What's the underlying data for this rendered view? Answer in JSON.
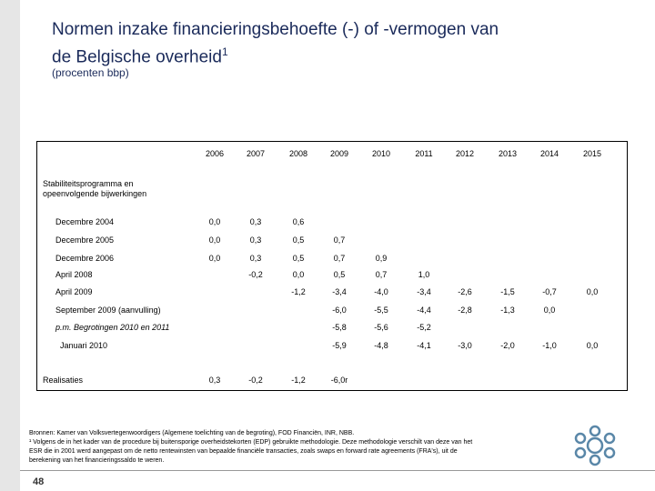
{
  "header": {
    "title_lines": [
      "Normen inzake financieringsbehoefte (-) of -vermogen van",
      "de Belgische overheid"
    ],
    "title_mark": "1",
    "subtitle": "(procenten bbp)"
  },
  "table": {
    "columns": [
      "2006",
      "2007",
      "2008",
      "2009",
      "2010",
      "2011",
      "2012",
      "2013",
      "2014",
      "2015"
    ],
    "section": "Stabiliteitsprogramma en opeenvolgende bijwerkingen",
    "rows": [
      {
        "label": "Decembre 2004",
        "cells": [
          "0,0",
          "0,3",
          "0,6",
          null,
          null,
          null,
          null,
          null,
          null,
          null
        ]
      },
      {
        "label": "Decembre 2005",
        "cells": [
          "0,0",
          "0,3",
          "0,5",
          "0,7",
          null,
          null,
          null,
          null,
          null,
          null
        ]
      },
      {
        "label": "Decembre 2006",
        "cells": [
          "0,0",
          "0,3",
          "0,5",
          "0,7",
          "0,9",
          null,
          null,
          null,
          null,
          null
        ]
      },
      {
        "label": "April 2008",
        "cells": [
          null,
          "-0,2",
          "0,0",
          "0,5",
          "0,7",
          "1,0",
          null,
          null,
          null,
          null
        ]
      },
      {
        "label": "April 2009",
        "cells": [
          null,
          null,
          "-1,2",
          "-3,4",
          "-4,0",
          "-3,4",
          "-2,6",
          "-1,5",
          "-0,7",
          "0,0"
        ]
      },
      {
        "label": "September 2009 (aanvulling)",
        "cells": [
          null,
          null,
          null,
          "-6,0",
          "-5,5",
          "-4,4",
          "-2,8",
          "-1,3",
          "0,0",
          null
        ]
      },
      {
        "label": "p.m. Begrotingen 2010 en 2011",
        "cells": [
          null,
          null,
          null,
          "-5,8",
          "-5,6",
          "-5,2",
          null,
          null,
          null,
          null
        ]
      },
      {
        "label": "Januari 2010",
        "cells": [
          null,
          null,
          null,
          "-5,9",
          "-4,8",
          "-4,1",
          "-3,0",
          "-2,0",
          "-1,0",
          "0,0"
        ]
      },
      {
        "label": "Realisaties",
        "cells": [
          "0,3",
          "-0,2",
          "-1,2",
          "-6,0r",
          null,
          null,
          null,
          null,
          null,
          null
        ]
      }
    ]
  },
  "footnotes": [
    "Bronnen: Kamer van Volksvertegenwoordigers (Algemene toelichting van de begroting), FOD Financiën, INR, NBB.",
    "¹  Volgens de in het kader van de procedure bij buitensporige overheidstekorten (EDP) gebruikte methodologie. Deze methodologie  verschilt van deze van het",
    "    ESR die in 2001 werd aangepast om de netto rentewinsten van bepaalde financiële transacties, zoals swaps en forward rate agreements (FRA's), uit de",
    "    berekening van het financieringssaldo te weren."
  ],
  "page_number": "48"
}
